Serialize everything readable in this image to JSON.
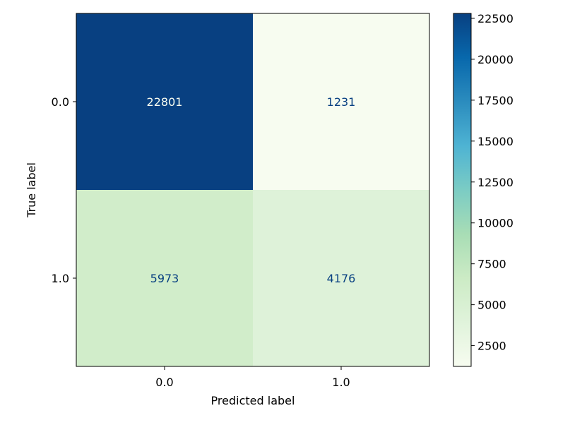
{
  "chart_data": {
    "type": "heatmap",
    "title": "",
    "xlabel": "Predicted label",
    "ylabel": "True label",
    "x_categories": [
      "0.0",
      "1.0"
    ],
    "y_categories": [
      "0.0",
      "1.0"
    ],
    "cells": [
      {
        "row": "0.0",
        "col": "0.0",
        "value": 22801
      },
      {
        "row": "0.0",
        "col": "1.0",
        "value": 1231
      },
      {
        "row": "1.0",
        "col": "0.0",
        "value": 5973
      },
      {
        "row": "1.0",
        "col": "1.0",
        "value": 4176
      }
    ],
    "colorbar": {
      "colormap": "GnBu",
      "range": [
        1231,
        22801
      ],
      "ticks": [
        2500,
        5000,
        7500,
        10000,
        12500,
        15000,
        17500,
        20000,
        22500
      ],
      "colors": [
        "#f7fcf0",
        "#e0f3db",
        "#ccebc5",
        "#a8ddb5",
        "#7bccc4",
        "#4eb3d3",
        "#2b8cbe",
        "#0868ac",
        "#084081"
      ]
    },
    "cell_text_colors": {
      "on_dark": "#f7fcf0",
      "on_light": "#084081"
    },
    "grid": false
  }
}
